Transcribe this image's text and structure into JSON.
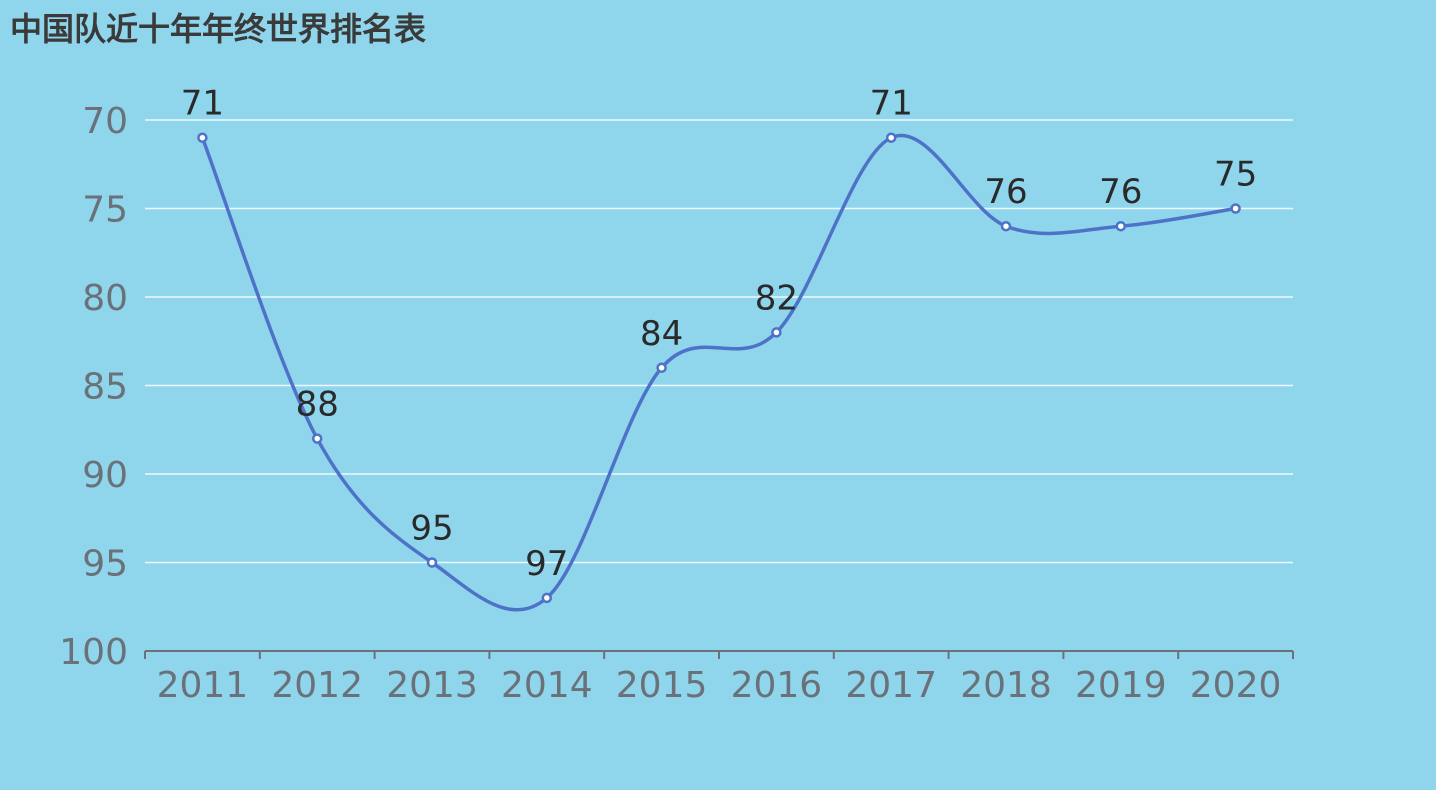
{
  "title": "中国队近十年年终世界排名表",
  "chart_data": {
    "type": "line",
    "smooth": true,
    "inverted_y": true,
    "categories": [
      "2011",
      "2012",
      "2013",
      "2014",
      "2015",
      "2016",
      "2017",
      "2018",
      "2019",
      "2020"
    ],
    "series": [
      {
        "values": [
          71,
          88,
          95,
          97,
          84,
          82,
          71,
          76,
          76,
          75
        ],
        "data_labels": [
          "71",
          "88",
          "95",
          "97",
          "84",
          "82",
          "71",
          "76",
          "76",
          "75"
        ]
      }
    ],
    "y_ticks": [
      "70",
      "75",
      "80",
      "85",
      "90",
      "95",
      "100"
    ],
    "ylim": [
      70,
      100
    ],
    "grid": true,
    "legend": "none",
    "colors": {
      "background": "#8fd6ed",
      "line": "#4e72c7",
      "marker_fill": "#ffffff",
      "grid": "#ffffff",
      "axis": "#6b7178"
    }
  }
}
